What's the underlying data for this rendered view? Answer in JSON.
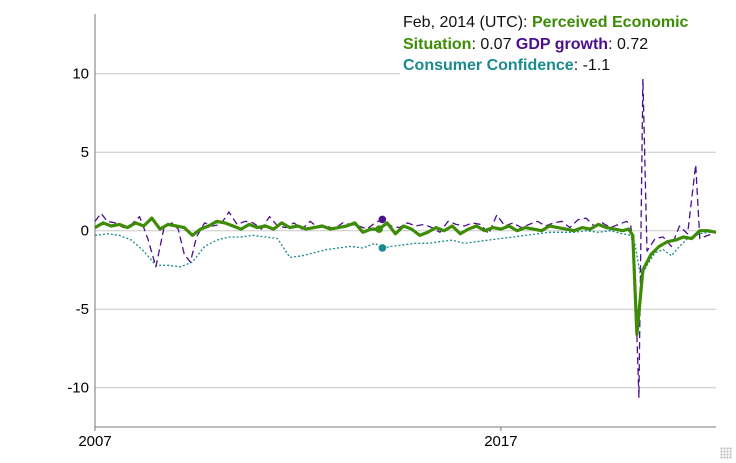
{
  "tooltip": {
    "date": "Feb, 2014 (UTC)",
    "items": [
      {
        "name": "Perceived Economic Situation",
        "value": "0.07",
        "color": "#3d8c06"
      },
      {
        "name": "GDP growth",
        "value": "0.72",
        "color": "#4b0f8c"
      },
      {
        "name": "Consumer Confidence",
        "value": "-1.1",
        "color": "#1a8a8f"
      }
    ]
  },
  "chart_data": {
    "type": "line",
    "title": "",
    "xlabel": "",
    "ylabel": "",
    "x_range": [
      2007.0,
      2022.3
    ],
    "ylim": [
      -12.5,
      13.8
    ],
    "y_ticks": [
      10,
      5,
      0,
      -5,
      -10
    ],
    "y_tick_labels": [
      "10",
      "5",
      "0",
      "-5",
      "-10"
    ],
    "x_tick_labels": [
      {
        "x": 2007,
        "label": "2007"
      },
      {
        "x": 2017,
        "label": "2017"
      }
    ],
    "grid": true,
    "hover_x": 2014.08,
    "series": [
      {
        "name": "Perceived Economic Situation",
        "color": "#3d8c06",
        "style": "solid-thick",
        "x": [
          2007.0,
          2007.2,
          2007.4,
          2007.6,
          2007.8,
          2008.0,
          2008.2,
          2008.4,
          2008.6,
          2008.8,
          2009.0,
          2009.2,
          2009.4,
          2009.6,
          2009.8,
          2010.0,
          2010.2,
          2010.4,
          2010.6,
          2010.8,
          2011.0,
          2011.2,
          2011.4,
          2011.6,
          2011.8,
          2012.0,
          2012.2,
          2012.4,
          2012.6,
          2012.8,
          2013.0,
          2013.2,
          2013.4,
          2013.6,
          2013.8,
          2014.0,
          2014.2,
          2014.4,
          2014.6,
          2014.8,
          2015.0,
          2015.2,
          2015.4,
          2015.6,
          2015.8,
          2016.0,
          2016.2,
          2016.4,
          2016.6,
          2016.8,
          2017.0,
          2017.2,
          2017.4,
          2017.6,
          2017.8,
          2018.0,
          2018.2,
          2018.4,
          2018.6,
          2018.8,
          2019.0,
          2019.2,
          2019.4,
          2019.6,
          2019.8,
          2020.0,
          2020.15,
          2020.25,
          2020.35,
          2020.5,
          2020.7,
          2020.9,
          2021.1,
          2021.3,
          2021.5,
          2021.7,
          2021.9,
          2022.1,
          2022.3
        ],
        "y": [
          0.2,
          0.5,
          0.3,
          0.4,
          0.2,
          0.5,
          0.3,
          0.8,
          0.1,
          0.4,
          0.3,
          0.2,
          -0.3,
          0.1,
          0.3,
          0.6,
          0.5,
          0.3,
          0.1,
          0.4,
          0.2,
          0.3,
          0.1,
          0.5,
          0.2,
          0.3,
          0.1,
          0.2,
          0.3,
          0.1,
          0.2,
          0.3,
          0.5,
          -0.1,
          0.1,
          0.1,
          0.5,
          -0.2,
          0.3,
          0.1,
          -0.3,
          -0.1,
          0.2,
          0.0,
          0.3,
          -0.2,
          0.1,
          0.3,
          0.0,
          0.2,
          0.1,
          0.3,
          0.0,
          0.2,
          0.1,
          0.0,
          0.3,
          0.2,
          0.1,
          0.0,
          0.2,
          0.1,
          0.4,
          0.2,
          0.1,
          0.0,
          0.1,
          -0.3,
          -6.6,
          -2.5,
          -1.5,
          -1.0,
          -0.7,
          -0.6,
          -0.4,
          -0.5,
          0.0,
          0.0,
          -0.1
        ]
      },
      {
        "name": "GDP growth",
        "color": "#4b0f8c",
        "style": "dashed",
        "x": [
          2007.0,
          2007.15,
          2007.3,
          2007.5,
          2007.7,
          2007.9,
          2008.1,
          2008.3,
          2008.5,
          2008.7,
          2008.9,
          2009.05,
          2009.2,
          2009.35,
          2009.5,
          2009.7,
          2009.9,
          2010.1,
          2010.3,
          2010.5,
          2010.7,
          2010.9,
          2011.1,
          2011.3,
          2011.5,
          2011.7,
          2011.9,
          2012.1,
          2012.3,
          2012.5,
          2012.7,
          2012.9,
          2013.1,
          2013.3,
          2013.5,
          2013.7,
          2013.9,
          2014.08,
          2014.3,
          2014.5,
          2014.7,
          2014.9,
          2015.1,
          2015.3,
          2015.5,
          2015.7,
          2015.9,
          2016.1,
          2016.3,
          2016.5,
          2016.7,
          2016.9,
          2017.1,
          2017.3,
          2017.5,
          2017.7,
          2017.9,
          2018.1,
          2018.3,
          2018.5,
          2018.7,
          2018.9,
          2019.1,
          2019.3,
          2019.5,
          2019.7,
          2019.9,
          2020.1,
          2020.2,
          2020.3,
          2020.4,
          2020.5,
          2020.6,
          2020.8,
          2021.0,
          2021.2,
          2021.4,
          2021.6,
          2021.8,
          2021.9,
          2022.1,
          2022.3
        ],
        "y": [
          0.6,
          1.1,
          0.6,
          0.5,
          0.2,
          0.4,
          0.9,
          -0.5,
          -2.3,
          0.2,
          0.5,
          0.1,
          -1.5,
          -2.0,
          -0.4,
          0.5,
          0.3,
          0.4,
          1.2,
          0.4,
          0.6,
          0.5,
          0.1,
          0.9,
          0.3,
          0.2,
          0.5,
          0.1,
          0.6,
          0.2,
          0.3,
          0.1,
          0.5,
          0.4,
          0.3,
          0.1,
          0.5,
          0.72,
          0.3,
          0.2,
          0.5,
          0.3,
          0.4,
          0.2,
          -0.1,
          0.6,
          0.4,
          0.3,
          0.5,
          0.4,
          -0.2,
          1.0,
          0.3,
          0.5,
          0.2,
          0.4,
          0.6,
          0.3,
          0.5,
          0.6,
          0.2,
          0.7,
          0.8,
          0.3,
          0.5,
          0.2,
          0.4,
          0.6,
          0.3,
          -2.5,
          -10.6,
          9.7,
          -1.3,
          -0.5,
          -0.4,
          -1.0,
          0.3,
          -0.2,
          4.2,
          -0.5,
          -0.3,
          -0.1
        ]
      },
      {
        "name": "Consumer Confidence",
        "color": "#1a8a8f",
        "style": "dotted",
        "x": [
          2007.0,
          2007.3,
          2007.6,
          2007.9,
          2008.2,
          2008.5,
          2008.8,
          2009.1,
          2009.4,
          2009.7,
          2010.0,
          2010.3,
          2010.6,
          2010.9,
          2011.2,
          2011.5,
          2011.8,
          2012.1,
          2012.4,
          2012.7,
          2013.0,
          2013.3,
          2013.6,
          2013.9,
          2014.08,
          2014.3,
          2014.6,
          2014.9,
          2015.2,
          2015.5,
          2015.8,
          2016.1,
          2016.4,
          2016.7,
          2017.0,
          2017.3,
          2017.6,
          2017.9,
          2018.2,
          2018.5,
          2018.8,
          2019.1,
          2019.4,
          2019.7,
          2020.0,
          2020.2,
          2020.3,
          2020.45,
          2020.6,
          2020.8,
          2021.0,
          2021.2,
          2021.4,
          2021.6,
          2021.9,
          2022.1,
          2022.3
        ],
        "y": [
          -0.3,
          -0.2,
          -0.3,
          -0.6,
          -1.3,
          -2.2,
          -2.2,
          -2.3,
          -2.0,
          -1.0,
          -0.6,
          -0.4,
          -0.4,
          -0.3,
          -0.4,
          -0.5,
          -1.7,
          -1.6,
          -1.4,
          -1.2,
          -1.1,
          -1.0,
          -1.1,
          -0.8,
          -1.1,
          -1.0,
          -0.9,
          -0.8,
          -0.8,
          -0.7,
          -0.6,
          -0.8,
          -0.7,
          -0.6,
          -0.5,
          -0.4,
          -0.3,
          -0.2,
          -0.1,
          -0.1,
          -0.1,
          0.0,
          -0.1,
          0.0,
          -0.2,
          -0.3,
          -0.8,
          -3.0,
          -2.2,
          -1.4,
          -1.2,
          -1.6,
          -1.0,
          -0.5,
          -0.2,
          -0.1,
          -0.1
        ]
      }
    ]
  }
}
